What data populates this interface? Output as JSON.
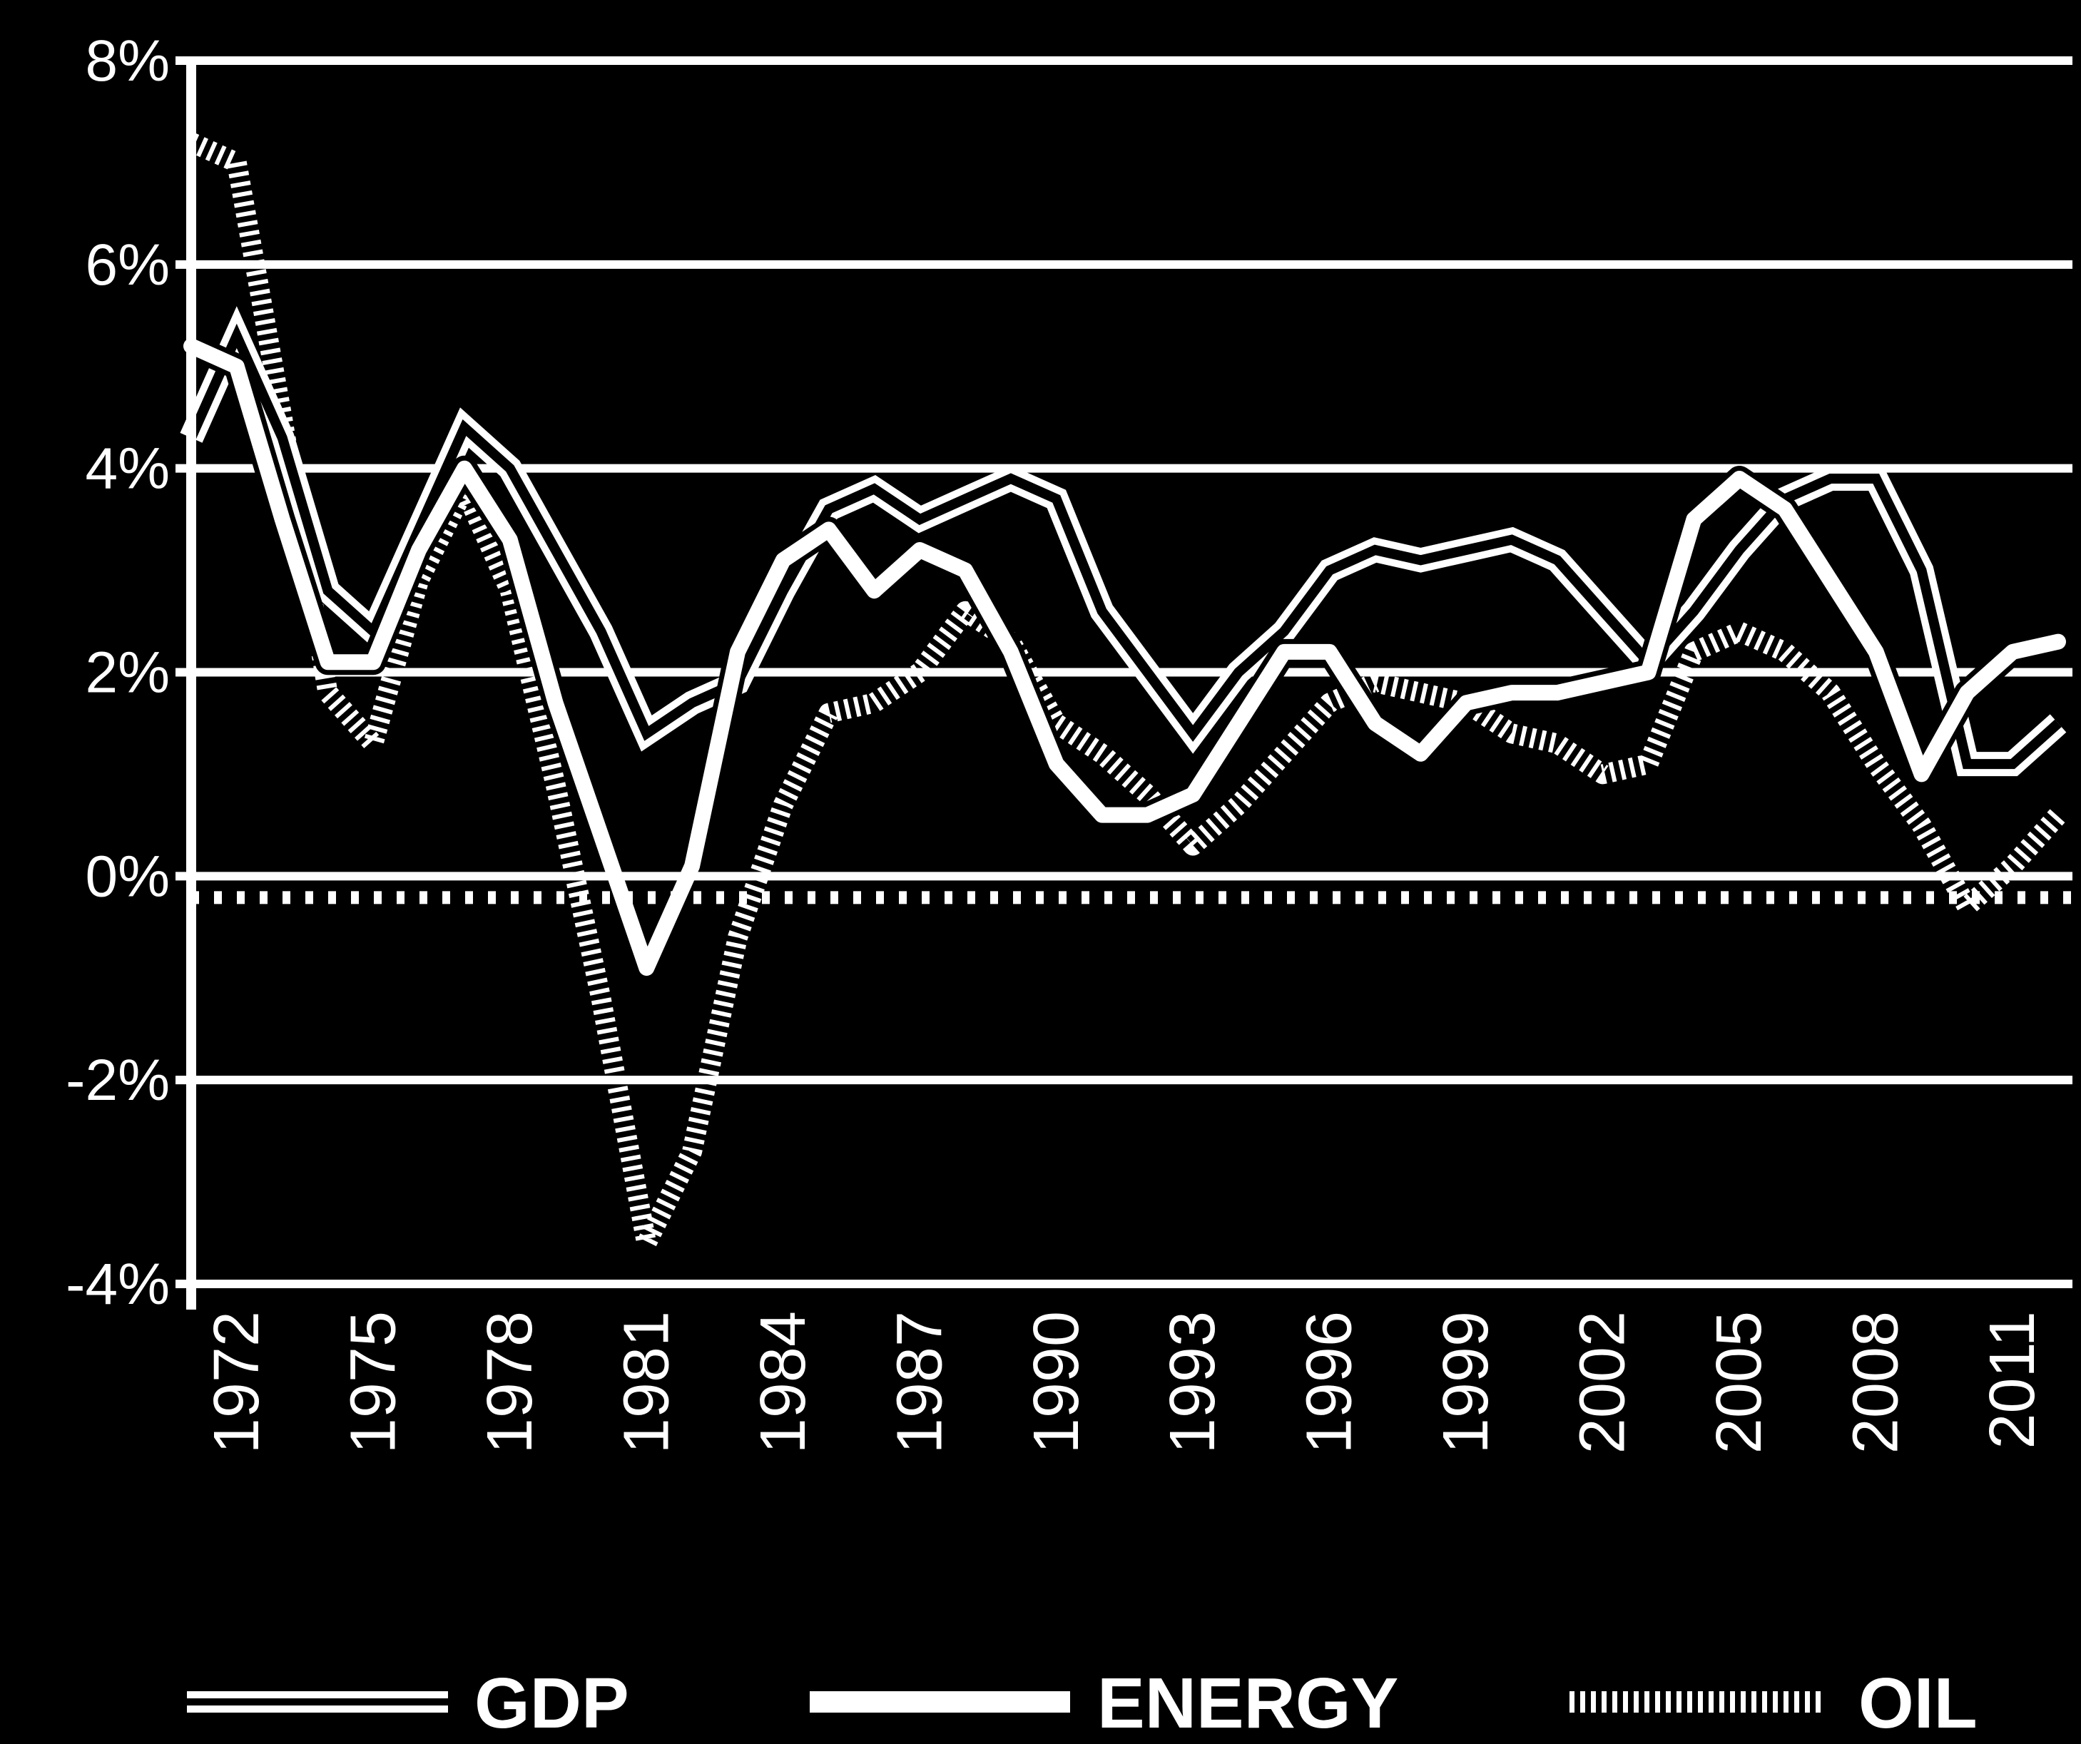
{
  "chart_data": {
    "type": "line",
    "title": "",
    "xlabel": "",
    "ylabel": "",
    "ylim": [
      -4,
      8
    ],
    "y_ticks": [
      {
        "value": 8,
        "label": "8%"
      },
      {
        "value": 6,
        "label": "6%"
      },
      {
        "value": 4,
        "label": "4%"
      },
      {
        "value": 2,
        "label": "2%"
      },
      {
        "value": 0,
        "label": "0%"
      },
      {
        "value": -2,
        "label": "-2%"
      },
      {
        "value": -4,
        "label": "-4%"
      }
    ],
    "x_ticks": [
      "1972",
      "1975",
      "1978",
      "1981",
      "1984",
      "1987",
      "1990",
      "1993",
      "1996",
      "1999",
      "2002",
      "2005",
      "2008",
      "2011"
    ],
    "x": [
      1971,
      1972,
      1973,
      1974,
      1975,
      1976,
      1977,
      1978,
      1979,
      1980,
      1981,
      1982,
      1983,
      1984,
      1985,
      1986,
      1987,
      1988,
      1989,
      1990,
      1991,
      1992,
      1993,
      1994,
      1995,
      1996,
      1997,
      1998,
      1999,
      2000,
      2001,
      2002,
      2003,
      2004,
      2005,
      2006,
      2007,
      2008,
      2009,
      2010,
      2011,
      2012
    ],
    "grid": true,
    "legend_position": "bottom",
    "series": [
      {
        "name": "GDP",
        "style": "double",
        "values": [
          4.3,
          5.3,
          4.3,
          2.8,
          2.4,
          3.4,
          4.4,
          4.0,
          3.2,
          2.4,
          1.4,
          1.7,
          1.9,
          2.8,
          3.6,
          3.8,
          3.5,
          3.7,
          3.9,
          3.7,
          2.6,
          2.0,
          1.4,
          2.0,
          2.4,
          3.0,
          3.2,
          3.1,
          3.2,
          3.3,
          3.1,
          2.6,
          2.1,
          2.6,
          3.2,
          3.7,
          3.9,
          3.9,
          3.0,
          1.1,
          1.1,
          1.5
        ]
      },
      {
        "name": "ENERGY",
        "style": "solid",
        "values": [
          5.2,
          5.0,
          3.5,
          2.1,
          2.1,
          3.2,
          4.0,
          3.3,
          1.7,
          0.4,
          -0.9,
          0.1,
          2.2,
          3.1,
          3.4,
          2.8,
          3.2,
          3.0,
          2.2,
          1.1,
          0.6,
          0.6,
          0.8,
          1.5,
          2.2,
          2.2,
          1.5,
          1.2,
          1.7,
          1.8,
          1.8,
          1.9,
          2.0,
          3.5,
          3.9,
          3.6,
          2.9,
          2.2,
          1.0,
          1.8,
          2.2,
          2.3
        ]
      },
      {
        "name": "OIL",
        "style": "dashed",
        "values": [
          7.2,
          7.0,
          4.5,
          1.8,
          1.3,
          2.9,
          3.8,
          2.8,
          0.9,
          -1.2,
          -3.6,
          -2.7,
          -0.6,
          0.7,
          1.6,
          1.7,
          2.0,
          2.6,
          2.3,
          1.5,
          1.2,
          0.8,
          0.3,
          0.7,
          1.2,
          1.7,
          1.9,
          1.8,
          1.7,
          1.4,
          1.3,
          1.0,
          1.1,
          2.2,
          2.4,
          2.2,
          1.8,
          1.1,
          0.5,
          -0.3,
          0.1,
          0.6
        ]
      }
    ]
  }
}
